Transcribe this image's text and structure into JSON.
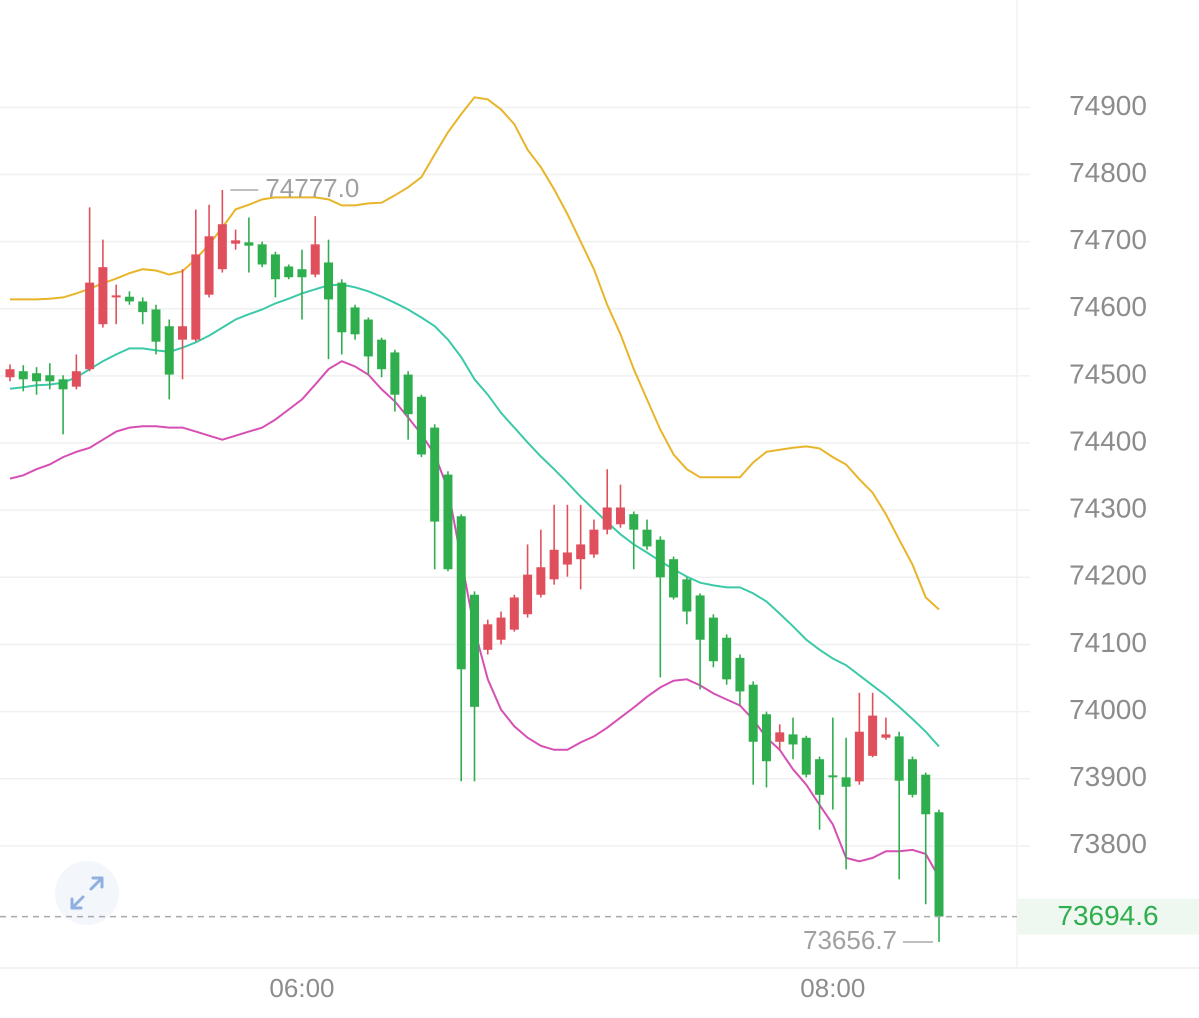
{
  "chart_data": {
    "type": "candlestick",
    "x": [
      null,
      null,
      null,
      null,
      null,
      null,
      null,
      null,
      null,
      null,
      null,
      null,
      null,
      null,
      null,
      null,
      null,
      null,
      null,
      null,
      null,
      null,
      "06:00",
      null,
      null,
      null,
      null,
      null,
      null,
      null,
      null,
      null,
      null,
      null,
      null,
      null,
      null,
      null,
      null,
      null,
      null,
      null,
      null,
      null,
      null,
      null,
      null,
      null,
      null,
      null,
      null,
      null,
      null,
      null,
      null,
      null,
      null,
      null,
      null,
      null,
      null,
      null,
      "08:00",
      null,
      null,
      null,
      null,
      null,
      null,
      null,
      null
    ],
    "open": [
      74498,
      74507,
      74504,
      74501,
      74495,
      74484,
      74510,
      74577,
      74617,
      74618,
      74611,
      74599,
      74574,
      74554,
      74554,
      74621,
      74659,
      74697,
      74699,
      74696,
      74681,
      74663,
      74659,
      74651,
      74669,
      74639,
      74602,
      74584,
      74554,
      74535,
      74502,
      74469,
      74423,
      74353,
      74291,
      74174,
      74092,
      74107,
      74122,
      74145,
      74174,
      74197,
      74219,
      74227,
      74234,
      74271,
      74279,
      74294,
      74271,
      74256,
      74227,
      74197,
      74173,
      74140,
      74110,
      74080,
      74040,
      73996,
      73955,
      73966,
      73961,
      73929,
      73905,
      73902,
      73896,
      73934,
      73961,
      73963,
      73929,
      73906,
      73850
    ],
    "high": [
      74517,
      74516,
      74513,
      74519,
      74501,
      74532,
      74751,
      74703,
      74636,
      74626,
      74617,
      74606,
      74584,
      74659,
      74748,
      74755,
      74777,
      74718,
      74736,
      74700,
      74685,
      74666,
      74688,
      74738,
      74703,
      74644,
      74606,
      74587,
      74557,
      74539,
      74507,
      74472,
      74428,
      74358,
      74294,
      74179,
      74137,
      74149,
      74174,
      74249,
      74271,
      74308,
      74308,
      74308,
      74286,
      74361,
      74338,
      74298,
      74286,
      74261,
      74231,
      74200,
      74176,
      74145,
      74115,
      74085,
      74045,
      74000,
      73981,
      73991,
      73964,
      73933,
      73991,
      73961,
      74028,
      74028,
      73991,
      73970,
      73933,
      73909,
      73854
    ],
    "low": [
      74492,
      74477,
      74472,
      74480,
      74413,
      74480,
      74507,
      74572,
      74577,
      74606,
      74577,
      74532,
      74465,
      74495,
      74551,
      74617,
      74654,
      74688,
      74654,
      74662,
      74617,
      74644,
      74584,
      74647,
      74525,
      74532,
      74554,
      74502,
      74498,
      74447,
      74405,
      74379,
      74212,
      74209,
      73896,
      73896,
      74085,
      74100,
      74119,
      74140,
      74170,
      74189,
      74201,
      74182,
      74229,
      74264,
      74274,
      74212,
      74241,
      74051,
      74167,
      74130,
      74033,
      74066,
      74040,
      74010,
      73891,
      73887,
      73943,
      73929,
      73902,
      73824,
      73854,
      73765,
      73891,
      73932,
      73958,
      73750,
      73872,
      73713,
      73656.7
    ],
    "close": [
      74510,
      74495,
      74492,
      74492,
      74480,
      74507,
      74639,
      74662,
      74620,
      74611,
      74595,
      74551,
      74502,
      74574,
      74681,
      74708,
      74726,
      74702,
      74694,
      74666,
      74644,
      74647,
      74647,
      74696,
      74614,
      74565,
      74562,
      74529,
      74510,
      74472,
      74443,
      74383,
      74283,
      74212,
      74063,
      74007,
      74130,
      74140,
      74170,
      74204,
      74215,
      74241,
      74237,
      74249,
      74271,
      74304,
      74304,
      74271,
      74246,
      74200,
      74170,
      74149,
      74107,
      74075,
      74048,
      74030,
      73955,
      73926,
      73969,
      73951,
      73906,
      73876,
      73902,
      73888,
      73970,
      73994,
      73966,
      73897,
      73876,
      73847,
      73694.6
    ],
    "up_color": "#e0505c",
    "down_color": "#2fae4e",
    "bands": [
      {
        "color": "#e8b52a",
        "values": [
          74614,
          74614,
          74614,
          74615,
          74617,
          74623,
          74630,
          74638,
          74645,
          74653,
          74659,
          74657,
          74651,
          74656,
          74674,
          74696,
          74721,
          74748,
          74755,
          74763,
          74766,
          74766,
          74766,
          74766,
          74763,
          74754,
          74754,
          74757,
          74758,
          74769,
          74781,
          74796,
          74830,
          74863,
          74890,
          74915,
          74912,
          74897,
          74875,
          74837,
          74811,
          74778,
          74741,
          74700,
          74659,
          74606,
          74562,
          74510,
          74465,
          74420,
          74383,
          74361,
          74349,
          74349,
          74349,
          74349,
          74371,
          74387,
          74390,
          74393,
          74395,
          74392,
          74379,
          74368,
          74346,
          74326,
          74294,
          74256,
          74219,
          74170,
          74152
        ]
      },
      {
        "color": "#3cc9a8",
        "values": [
          74481,
          74483,
          74486,
          74487,
          74490,
          74498,
          74510,
          74522,
          74532,
          74541,
          74541,
          74538,
          74536,
          74542,
          74550,
          74560,
          74572,
          74584,
          74592,
          74599,
          74608,
          74615,
          74623,
          74629,
          74635,
          74636,
          74632,
          74626,
          74618,
          74609,
          74599,
          74587,
          74574,
          74554,
          74528,
          74495,
          74472,
          74445,
          74423,
          74401,
          74380,
          74361,
          74341,
          74320,
          74301,
          74282,
          74264,
          74249,
          74237,
          74224,
          74212,
          74201,
          74192,
          74188,
          74185,
          74185,
          74176,
          74164,
          74146,
          74127,
          74107,
          74092,
          74079,
          74069,
          74054,
          74039,
          74024,
          74007,
          73989,
          73970,
          73948
        ]
      },
      {
        "color": "#d64fb4",
        "values": [
          74347,
          74352,
          74361,
          74368,
          74379,
          74387,
          74393,
          74405,
          74417,
          74423,
          74425,
          74425,
          74423,
          74423,
          74417,
          74411,
          74405,
          74411,
          74417,
          74423,
          74435,
          74450,
          74465,
          74487,
          74510,
          74522,
          74514,
          74502,
          74480,
          74462,
          74438,
          74413,
          74383,
          74331,
          74227,
          74122,
          74048,
          74003,
          73978,
          73961,
          73949,
          73943,
          73943,
          73954,
          73963,
          73976,
          73991,
          74006,
          74022,
          74036,
          74046,
          74048,
          74039,
          74027,
          74018,
          74009,
          73988,
          73961,
          73943,
          73914,
          73891,
          73861,
          73832,
          73782,
          73777,
          73782,
          73792,
          73792,
          73794,
          73788,
          73753
        ]
      }
    ],
    "ylim": [
      73618,
      75060
    ],
    "yticks": [
      73800,
      73900,
      74000,
      74100,
      74200,
      74300,
      74400,
      74500,
      74600,
      74700,
      74800,
      74900
    ],
    "grid": true,
    "high_label": {
      "value": 74777,
      "label": "74777.0"
    },
    "low_label": 73656.7,
    "last_price": 73694.6,
    "last_price_color": "#2fae4e"
  }
}
